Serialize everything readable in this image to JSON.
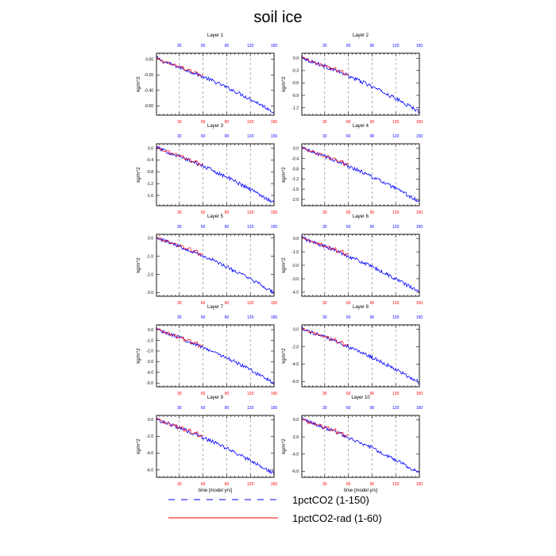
{
  "title": "soil ice",
  "chart_data": {
    "type": "line",
    "xlabel": "time [model yrs]",
    "ylabel": "kg/m^2",
    "xlim": [
      1,
      150
    ],
    "bottom_ticks": [
      "30",
      "60",
      "90",
      "120",
      "150"
    ],
    "top_ticks": [
      "30",
      "60",
      "90",
      "120",
      "150"
    ],
    "colors": {
      "blue": "#0000ff",
      "red": "#ff0000",
      "grid": "#8c8c8c"
    },
    "legend": {
      "placement": "bottom",
      "entries": [
        {
          "label": "1pctCO2 (1-150)",
          "color": "#0000ff",
          "style": "dashed"
        },
        {
          "label": "1pctCO2-rad (1-60)",
          "color": "#ff0000",
          "style": "solid"
        }
      ]
    },
    "panels": [
      {
        "title": "Layer 1",
        "yticks": [
          "0.00",
          "-0.20",
          "-0.40",
          "-0.60"
        ],
        "ylim": [
          -0.72,
          0.08
        ],
        "end": -0.68
      },
      {
        "title": "Layer 2",
        "yticks": [
          "0.0",
          "-0.3",
          "-0.6",
          "-0.9",
          "-1.2"
        ],
        "ylim": [
          -1.38,
          0.12
        ],
        "end": -1.3
      },
      {
        "title": "Layer 3",
        "yticks": [
          "0.0",
          "-0.4",
          "-0.8",
          "-1.2",
          "-1.6"
        ],
        "ylim": [
          -1.95,
          0.15
        ],
        "end": -1.85
      },
      {
        "title": "Layer 4",
        "yticks": [
          "0.0",
          "-0.4",
          "-0.8",
          "-1.2",
          "-1.6",
          "-2.0"
        ],
        "ylim": [
          -2.25,
          0.18
        ],
        "end": -2.1
      },
      {
        "title": "Layer 5",
        "yticks": [
          "0.0",
          "-1.0",
          "-2.0",
          "-3.0"
        ],
        "ylim": [
          -3.2,
          0.2
        ],
        "end": -3.0
      },
      {
        "title": "Layer 6",
        "yticks": [
          "0.0",
          "-1.0",
          "-2.0",
          "-3.0",
          "-4.0"
        ],
        "ylim": [
          -4.3,
          0.3
        ],
        "end": -4.0
      },
      {
        "title": "Layer 7",
        "yticks": [
          "0.0",
          "-1.0",
          "-2.0",
          "-3.0",
          "-4.0",
          "-5.0"
        ],
        "ylim": [
          -5.35,
          0.45
        ],
        "end": -5.0
      },
      {
        "title": "Layer 8",
        "yticks": [
          "0.0",
          "-2.0",
          "-4.0",
          "-6.0"
        ],
        "ylim": [
          -6.6,
          0.5
        ],
        "end": -6.1
      },
      {
        "title": "Layer 9",
        "yticks": [
          "0.0",
          "-2.0",
          "-4.0",
          "-6.0"
        ],
        "ylim": [
          -6.9,
          0.5
        ],
        "end": -6.5
      },
      {
        "title": "Layer 10",
        "yticks": [
          "0.0",
          "-2.0",
          "-4.0",
          "-6.0"
        ],
        "ylim": [
          -6.7,
          0.5
        ],
        "end": -6.2
      }
    ]
  }
}
